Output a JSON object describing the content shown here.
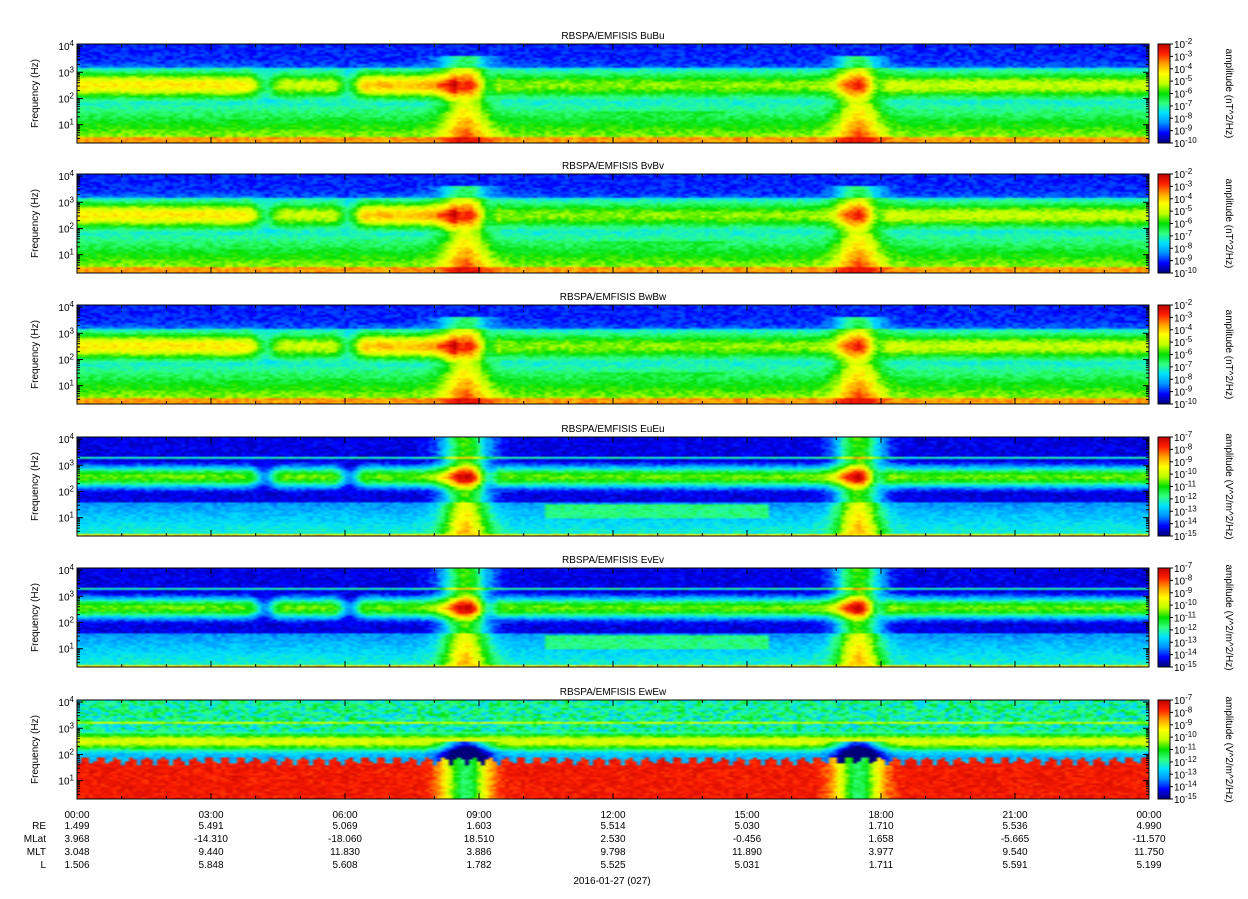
{
  "chart_data": {
    "type": "heatmap",
    "date_label": "2016-01-27 (027)",
    "x_ticks": [
      "00:00",
      "03:00",
      "06:00",
      "09:00",
      "12:00",
      "15:00",
      "18:00",
      "21:00",
      "00:00"
    ],
    "y_axis": {
      "label": "Frequency (Hz)",
      "scale": "log",
      "range": [
        2,
        12000
      ],
      "ticks": [
        {
          "base": "10",
          "exp": "1"
        },
        {
          "base": "10",
          "exp": "2"
        },
        {
          "base": "10",
          "exp": "3"
        },
        {
          "base": "10",
          "exp": "4"
        }
      ]
    },
    "colorscale": [
      "#00007a",
      "#0000ff",
      "#0090ff",
      "#00e0ff",
      "#30ff80",
      "#00e000",
      "#c0ff00",
      "#ffff00",
      "#ffa000",
      "#ff2000",
      "#c00000"
    ],
    "panels": [
      {
        "title": "RBSPA/EMFISIS  BuBu",
        "kind": "B",
        "cb_label": "amplitude (nT^2/Hz)",
        "cb_ticks": [
          {
            "base": "10",
            "exp": "-2"
          },
          {
            "base": "10",
            "exp": "-3"
          },
          {
            "base": "10",
            "exp": "-4"
          },
          {
            "base": "10",
            "exp": "-5"
          },
          {
            "base": "10",
            "exp": "-6"
          },
          {
            "base": "10",
            "exp": "-7"
          },
          {
            "base": "10",
            "exp": "-8"
          },
          {
            "base": "10",
            "exp": "-9"
          },
          {
            "base": "10",
            "exp": "-10"
          }
        ]
      },
      {
        "title": "RBSPA/EMFISIS  BvBv",
        "kind": "B",
        "cb_label": "amplitude (nT^2/Hz)",
        "cb_ticks": [
          {
            "base": "10",
            "exp": "-2"
          },
          {
            "base": "10",
            "exp": "-3"
          },
          {
            "base": "10",
            "exp": "-4"
          },
          {
            "base": "10",
            "exp": "-5"
          },
          {
            "base": "10",
            "exp": "-6"
          },
          {
            "base": "10",
            "exp": "-7"
          },
          {
            "base": "10",
            "exp": "-8"
          },
          {
            "base": "10",
            "exp": "-9"
          },
          {
            "base": "10",
            "exp": "-10"
          }
        ]
      },
      {
        "title": "RBSPA/EMFISIS  BwBw",
        "kind": "B",
        "cb_label": "amplitude (nT^2/Hz)",
        "cb_ticks": [
          {
            "base": "10",
            "exp": "-2"
          },
          {
            "base": "10",
            "exp": "-3"
          },
          {
            "base": "10",
            "exp": "-4"
          },
          {
            "base": "10",
            "exp": "-5"
          },
          {
            "base": "10",
            "exp": "-6"
          },
          {
            "base": "10",
            "exp": "-7"
          },
          {
            "base": "10",
            "exp": "-8"
          },
          {
            "base": "10",
            "exp": "-9"
          },
          {
            "base": "10",
            "exp": "-10"
          }
        ]
      },
      {
        "title": "RBSPA/EMFISIS  EuEu",
        "kind": "E",
        "cb_label": "amplitude (V^2/m^2/Hz)",
        "cb_ticks": [
          {
            "base": "10",
            "exp": "-7"
          },
          {
            "base": "10",
            "exp": "-8"
          },
          {
            "base": "10",
            "exp": "-9"
          },
          {
            "base": "10",
            "exp": "-10"
          },
          {
            "base": "10",
            "exp": "-11"
          },
          {
            "base": "10",
            "exp": "-12"
          },
          {
            "base": "10",
            "exp": "-13"
          },
          {
            "base": "10",
            "exp": "-14"
          },
          {
            "base": "10",
            "exp": "-15"
          }
        ]
      },
      {
        "title": "RBSPA/EMFISIS  EvEv",
        "kind": "E",
        "cb_label": "amplitude (V^2/m^2/Hz)",
        "cb_ticks": [
          {
            "base": "10",
            "exp": "-7"
          },
          {
            "base": "10",
            "exp": "-8"
          },
          {
            "base": "10",
            "exp": "-9"
          },
          {
            "base": "10",
            "exp": "-10"
          },
          {
            "base": "10",
            "exp": "-11"
          },
          {
            "base": "10",
            "exp": "-12"
          },
          {
            "base": "10",
            "exp": "-13"
          },
          {
            "base": "10",
            "exp": "-14"
          },
          {
            "base": "10",
            "exp": "-15"
          }
        ]
      },
      {
        "title": "RBSPA/EMFISIS  EwEw",
        "kind": "Ew",
        "cb_label": "amplitude (V^2/m^2/Hz)",
        "cb_ticks": [
          {
            "base": "10",
            "exp": "-7"
          },
          {
            "base": "10",
            "exp": "-8"
          },
          {
            "base": "10",
            "exp": "-9"
          },
          {
            "base": "10",
            "exp": "-10"
          },
          {
            "base": "10",
            "exp": "-11"
          },
          {
            "base": "10",
            "exp": "-12"
          },
          {
            "base": "10",
            "exp": "-13"
          },
          {
            "base": "10",
            "exp": "-14"
          },
          {
            "base": "10",
            "exp": "-15"
          }
        ]
      }
    ],
    "ephemeris": [
      {
        "label": "RE",
        "values": [
          "1.499",
          "5.491",
          "5.069",
          "1.603",
          "5.514",
          "5.030",
          "1.710",
          "5.536",
          "4.990"
        ]
      },
      {
        "label": "MLat",
        "values": [
          "3.968",
          "-14.310",
          "-18.060",
          "18.510",
          "2.530",
          "-0.456",
          "1.658",
          "-5.665",
          "-11.570"
        ]
      },
      {
        "label": "MLT",
        "values": [
          "3.048",
          "9.440",
          "11.830",
          "3.886",
          "9.798",
          "11.890",
          "3.977",
          "9.540",
          "11.750"
        ]
      },
      {
        "label": "L",
        "values": [
          "1.506",
          "5.848",
          "5.608",
          "1.782",
          "5.525",
          "5.031",
          "1.711",
          "5.591",
          "5.199"
        ]
      }
    ]
  }
}
